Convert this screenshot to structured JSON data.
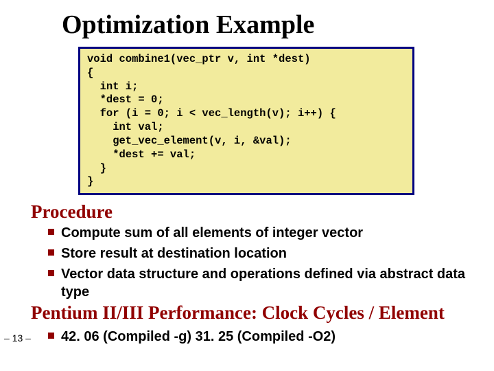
{
  "title": "Optimization Example",
  "code": "void combine1(vec_ptr v, int *dest)\n{\n  int i;\n  *dest = 0;\n  for (i = 0; i < vec_length(v); i++) {\n    int val;\n    get_vec_element(v, i, &val);\n    *dest += val;\n  }\n}",
  "section1": {
    "heading": "Procedure",
    "bullets": [
      "Compute sum of all elements of integer vector",
      "Store result at destination location",
      "Vector data structure and operations defined via abstract data type"
    ]
  },
  "section2": {
    "heading": "Pentium II/III Performance: Clock Cycles / Element",
    "bullets": [
      "42. 06 (Compiled -g) 31. 25 (Compiled -O2)"
    ]
  },
  "page_number": "– 13 –",
  "colors": {
    "heading": "#900000",
    "code_bg": "#f2eb9d",
    "code_border": "#000080",
    "bullet_square": "#900000",
    "text": "#000000"
  },
  "fonts": {
    "title_family": "Times New Roman",
    "title_size_pt": 28,
    "heading_family": "Times New Roman",
    "heading_size_pt": 20,
    "body_family": "Arial",
    "body_size_pt": 15,
    "code_family": "Courier New",
    "code_size_pt": 12
  }
}
